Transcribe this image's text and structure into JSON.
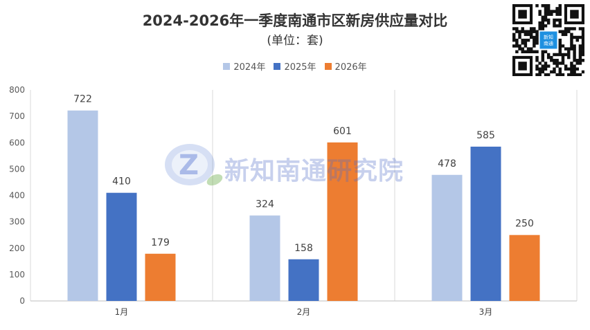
{
  "title": "2024-2026年一季度南通市区新房供应量对比",
  "subtitle": "(单位：套)",
  "watermark_text": "新知南通研究院",
  "qr_center_text": "新知\n南通",
  "chart_data": {
    "type": "bar",
    "categories": [
      "1月",
      "2月",
      "3月"
    ],
    "series": [
      {
        "name": "2024年",
        "color": "#b4c7e7",
        "values": [
          722,
          324,
          478
        ]
      },
      {
        "name": "2025年",
        "color": "#4472c4",
        "values": [
          410,
          158,
          585
        ]
      },
      {
        "name": "2026年",
        "color": "#ed7d31",
        "values": [
          179,
          601,
          250
        ]
      }
    ],
    "ylim": [
      0,
      800
    ],
    "yticks": [
      0,
      100,
      200,
      300,
      400,
      500,
      600,
      700,
      800
    ],
    "grid": "vertical-category-separators",
    "legend_position": "top-center"
  }
}
